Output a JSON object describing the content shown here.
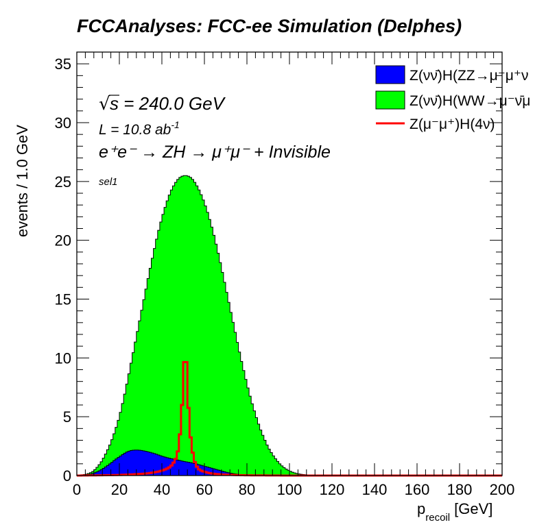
{
  "chart_data": {
    "type": "area",
    "title": "FCCAnalyses: FCC-ee Simulation (Delphes)",
    "xlabel": "p",
    "xlabel_subscript": "recoil",
    "xlabel_unit": "[GeV]",
    "ylabel": "events / 1.0 GeV",
    "xlim": [
      0,
      200
    ],
    "ylim": [
      0,
      36
    ],
    "x_ticks": [
      0,
      20,
      40,
      60,
      80,
      100,
      120,
      140,
      160,
      180,
      200
    ],
    "y_ticks": [
      0,
      5,
      10,
      15,
      20,
      25,
      30,
      35
    ],
    "grid": false,
    "legend_position": "top-right",
    "annotations": {
      "sqrt_s": "s = 240.0 GeV",
      "lumi": "L = 10.8 ab",
      "lumi_exponent": "-1",
      "process": "e⁺e⁻ → ZH → μ⁺μ⁻ + Invisible",
      "selection": "sel1"
    },
    "series": [
      {
        "name": "Z(νν̄)H(ZZ→μ⁻μ⁺ν",
        "style": "stacked-fill",
        "color": "#0000ff",
        "points": [
          [
            0,
            0
          ],
          [
            2,
            0.02
          ],
          [
            4,
            0.05
          ],
          [
            6,
            0.1
          ],
          [
            8,
            0.2
          ],
          [
            10,
            0.35
          ],
          [
            12,
            0.55
          ],
          [
            14,
            0.8
          ],
          [
            16,
            1.05
          ],
          [
            18,
            1.35
          ],
          [
            20,
            1.6
          ],
          [
            22,
            1.85
          ],
          [
            24,
            2.05
          ],
          [
            26,
            2.15
          ],
          [
            28,
            2.18
          ],
          [
            30,
            2.15
          ],
          [
            32,
            2.08
          ],
          [
            34,
            2.0
          ],
          [
            36,
            1.9
          ],
          [
            38,
            1.78
          ],
          [
            40,
            1.65
          ],
          [
            42,
            1.55
          ],
          [
            44,
            1.45
          ],
          [
            46,
            1.38
          ],
          [
            48,
            1.3
          ],
          [
            50,
            1.22
          ],
          [
            52,
            1.15
          ],
          [
            54,
            1.08
          ],
          [
            56,
            1.0
          ],
          [
            58,
            0.9
          ],
          [
            60,
            0.8
          ],
          [
            62,
            0.7
          ],
          [
            64,
            0.6
          ],
          [
            66,
            0.5
          ],
          [
            68,
            0.4
          ],
          [
            70,
            0.3
          ],
          [
            72,
            0.22
          ],
          [
            74,
            0.15
          ],
          [
            76,
            0.1
          ],
          [
            78,
            0.06
          ],
          [
            80,
            0.04
          ],
          [
            85,
            0.02
          ],
          [
            90,
            0.01
          ],
          [
            95,
            0
          ],
          [
            200,
            0
          ]
        ]
      },
      {
        "name": "Z(νν̄)H(WW→μ⁻ν̄μ",
        "style": "stacked-fill",
        "color": "#00ff00",
        "points": [
          [
            0,
            0
          ],
          [
            2,
            0.05
          ],
          [
            4,
            0.1
          ],
          [
            6,
            0.2
          ],
          [
            8,
            0.4
          ],
          [
            10,
            0.8
          ],
          [
            12,
            1.3
          ],
          [
            14,
            2.0
          ],
          [
            16,
            2.8
          ],
          [
            18,
            3.8
          ],
          [
            20,
            5.0
          ],
          [
            22,
            6.5
          ],
          [
            24,
            8.2
          ],
          [
            26,
            10.0
          ],
          [
            28,
            11.8
          ],
          [
            30,
            13.6
          ],
          [
            32,
            15.4
          ],
          [
            34,
            17.2
          ],
          [
            36,
            18.9
          ],
          [
            38,
            20.5
          ],
          [
            40,
            21.9
          ],
          [
            42,
            23.1
          ],
          [
            44,
            24.1
          ],
          [
            46,
            24.8
          ],
          [
            48,
            25.3
          ],
          [
            50,
            25.5
          ],
          [
            52,
            25.5
          ],
          [
            54,
            25.3
          ],
          [
            56,
            24.8
          ],
          [
            58,
            24.1
          ],
          [
            60,
            23.2
          ],
          [
            62,
            22.1
          ],
          [
            64,
            20.8
          ],
          [
            66,
            19.3
          ],
          [
            68,
            17.7
          ],
          [
            70,
            16.0
          ],
          [
            72,
            14.3
          ],
          [
            74,
            12.6
          ],
          [
            76,
            10.9
          ],
          [
            78,
            9.3
          ],
          [
            80,
            7.8
          ],
          [
            82,
            6.4
          ],
          [
            84,
            5.2
          ],
          [
            86,
            4.1
          ],
          [
            88,
            3.2
          ],
          [
            90,
            2.4
          ],
          [
            92,
            1.8
          ],
          [
            94,
            1.3
          ],
          [
            96,
            0.9
          ],
          [
            98,
            0.6
          ],
          [
            100,
            0.4
          ],
          [
            102,
            0.25
          ],
          [
            104,
            0.15
          ],
          [
            106,
            0.1
          ],
          [
            108,
            0.06
          ],
          [
            110,
            0.03
          ],
          [
            115,
            0.01
          ],
          [
            120,
            0
          ],
          [
            200,
            0
          ]
        ]
      },
      {
        "name": "Z(μ⁻μ⁺)H(4ν)",
        "style": "line",
        "color": "#ff0000",
        "points": [
          [
            0,
            0
          ],
          [
            10,
            0.02
          ],
          [
            20,
            0.05
          ],
          [
            26,
            0.1
          ],
          [
            30,
            0.14
          ],
          [
            34,
            0.2
          ],
          [
            36,
            0.26
          ],
          [
            38,
            0.32
          ],
          [
            40,
            0.42
          ],
          [
            42,
            0.55
          ],
          [
            44,
            0.75
          ],
          [
            45,
            0.95
          ],
          [
            46,
            1.25
          ],
          [
            47,
            1.6
          ],
          [
            48,
            2.5
          ],
          [
            49,
            4.5
          ],
          [
            50,
            7.5
          ],
          [
            51,
            11.8
          ],
          [
            52,
            7.5
          ],
          [
            53,
            4.0
          ],
          [
            54,
            2.5
          ],
          [
            55,
            1.4
          ],
          [
            56,
            0.9
          ],
          [
            57,
            0.6
          ],
          [
            58,
            0.45
          ],
          [
            60,
            0.32
          ],
          [
            62,
            0.22
          ],
          [
            64,
            0.16
          ],
          [
            66,
            0.12
          ],
          [
            68,
            0.1
          ],
          [
            70,
            0.08
          ],
          [
            75,
            0.04
          ],
          [
            80,
            0.02
          ],
          [
            90,
            0.01
          ],
          [
            100,
            0
          ],
          [
            200,
            0
          ]
        ]
      }
    ]
  }
}
